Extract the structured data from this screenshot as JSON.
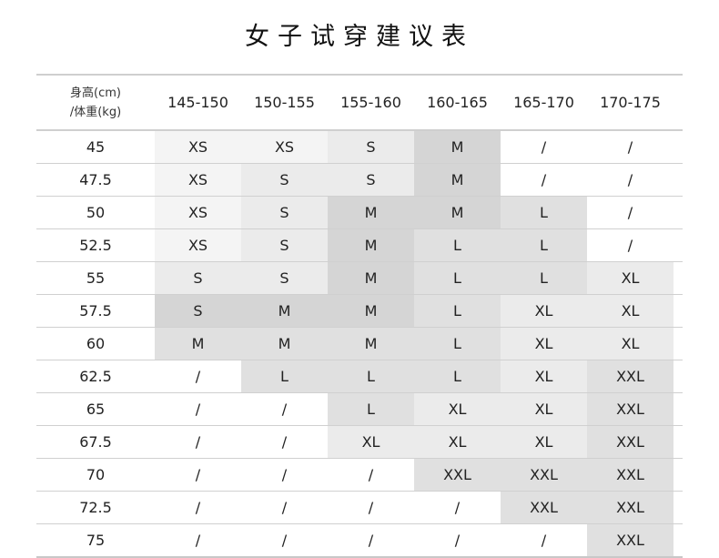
{
  "title": "女子试穿建议表",
  "header": {
    "corner_line1": "身高(cm)",
    "corner_line2": "/体重(kg)",
    "heights": [
      "145-150",
      "150-155",
      "155-160",
      "160-165",
      "165-170",
      "170-175"
    ]
  },
  "shades": [
    "#ffffff",
    "#f4f4f4",
    "#ebebeb",
    "#e0e0e0",
    "#d5d5d5"
  ],
  "rows": [
    {
      "weight": "45",
      "sizes": [
        "XS",
        "XS",
        "S",
        "M",
        "/",
        "/"
      ],
      "shade": [
        1,
        1,
        2,
        4,
        0,
        0
      ]
    },
    {
      "weight": "47.5",
      "sizes": [
        "XS",
        "S",
        "S",
        "M",
        "/",
        "/"
      ],
      "shade": [
        1,
        2,
        2,
        4,
        0,
        0
      ]
    },
    {
      "weight": "50",
      "sizes": [
        "XS",
        "S",
        "M",
        "M",
        "L",
        "/"
      ],
      "shade": [
        1,
        2,
        4,
        4,
        3,
        0
      ]
    },
    {
      "weight": "52.5",
      "sizes": [
        "XS",
        "S",
        "M",
        "L",
        "L",
        "/"
      ],
      "shade": [
        1,
        2,
        4,
        3,
        3,
        0
      ]
    },
    {
      "weight": "55",
      "sizes": [
        "S",
        "S",
        "M",
        "L",
        "L",
        "XL"
      ],
      "shade": [
        2,
        2,
        4,
        3,
        3,
        2
      ]
    },
    {
      "weight": "57.5",
      "sizes": [
        "S",
        "M",
        "M",
        "L",
        "XL",
        "XL"
      ],
      "shade": [
        4,
        4,
        4,
        3,
        2,
        2
      ]
    },
    {
      "weight": "60",
      "sizes": [
        "M",
        "M",
        "M",
        "L",
        "XL",
        "XL"
      ],
      "shade": [
        3,
        3,
        3,
        3,
        2,
        2
      ]
    },
    {
      "weight": "62.5",
      "sizes": [
        "/",
        "L",
        "L",
        "L",
        "XL",
        "XXL"
      ],
      "shade": [
        0,
        3,
        3,
        3,
        2,
        3
      ]
    },
    {
      "weight": "65",
      "sizes": [
        "/",
        "/",
        "L",
        "XL",
        "XL",
        "XXL"
      ],
      "shade": [
        0,
        0,
        3,
        2,
        2,
        3
      ]
    },
    {
      "weight": "67.5",
      "sizes": [
        "/",
        "/",
        "XL",
        "XL",
        "XL",
        "XXL"
      ],
      "shade": [
        0,
        0,
        2,
        2,
        2,
        3
      ]
    },
    {
      "weight": "70",
      "sizes": [
        "/",
        "/",
        "/",
        "XXL",
        "XXL",
        "XXL"
      ],
      "shade": [
        0,
        0,
        0,
        3,
        3,
        3
      ]
    },
    {
      "weight": "72.5",
      "sizes": [
        "/",
        "/",
        "/",
        "/",
        "XXL",
        "XXL"
      ],
      "shade": [
        0,
        0,
        0,
        0,
        3,
        3
      ]
    },
    {
      "weight": "75",
      "sizes": [
        "/",
        "/",
        "/",
        "/",
        "/",
        "XXL"
      ],
      "shade": [
        0,
        0,
        0,
        0,
        0,
        3
      ]
    }
  ]
}
